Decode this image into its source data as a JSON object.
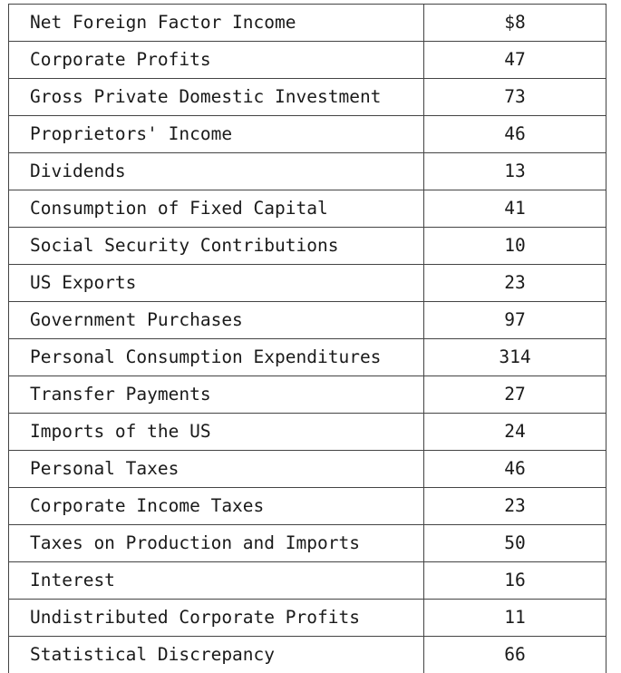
{
  "rows": [
    {
      "label": "Net Foreign Factor Income",
      "value": "$8"
    },
    {
      "label": "Corporate Profits",
      "value": "47"
    },
    {
      "label": "Gross Private Domestic Investment",
      "value": "73"
    },
    {
      "label": "Proprietors' Income",
      "value": "46"
    },
    {
      "label": "Dividends",
      "value": "13"
    },
    {
      "label": "Consumption of Fixed Capital",
      "value": "41"
    },
    {
      "label": "Social Security Contributions",
      "value": "10"
    },
    {
      "label": "US Exports",
      "value": "23"
    },
    {
      "label": "Government Purchases",
      "value": "97"
    },
    {
      "label": "Personal Consumption Expenditures",
      "value": "314"
    },
    {
      "label": "Transfer Payments",
      "value": "27"
    },
    {
      "label": "Imports of the US",
      "value": "24"
    },
    {
      "label": "Personal Taxes",
      "value": "46"
    },
    {
      "label": "Corporate Income Taxes",
      "value": "23"
    },
    {
      "label": "Taxes on Production and Imports",
      "value": "50"
    },
    {
      "label": "Interest",
      "value": "16"
    },
    {
      "label": "Undistributed Corporate Profits",
      "value": "11"
    },
    {
      "label": "Statistical Discrepancy",
      "value": "66"
    }
  ]
}
